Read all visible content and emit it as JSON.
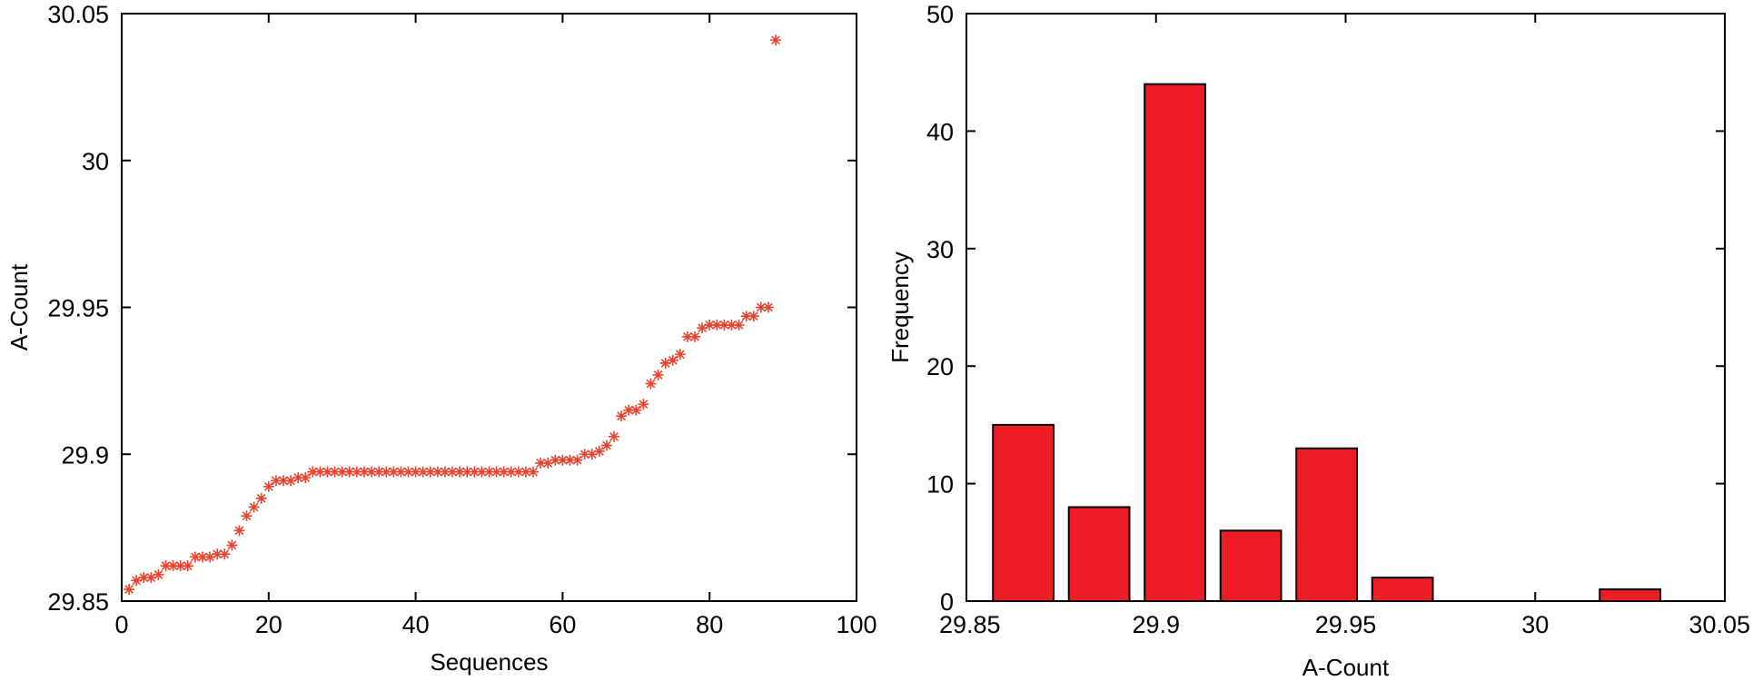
{
  "chart_data": [
    {
      "type": "scatter",
      "marker": "asterisk",
      "color": "#e8432e",
      "xlabel": "Sequences",
      "ylabel": "A-Count",
      "xlim": [
        0,
        100
      ],
      "ylim": [
        29.85,
        30.05
      ],
      "xticks": [
        0,
        20,
        40,
        60,
        80,
        100
      ],
      "xtick_labels": [
        "0",
        "20",
        "40",
        "60",
        "80",
        "100"
      ],
      "yticks": [
        29.85,
        29.9,
        29.95,
        30,
        30.05
      ],
      "ytick_labels": [
        "29.85",
        "29.9",
        "29.95",
        "30",
        "30.05"
      ],
      "grid": false,
      "x": [
        1,
        2,
        3,
        4,
        5,
        6,
        7,
        8,
        9,
        10,
        11,
        12,
        13,
        14,
        15,
        16,
        17,
        18,
        19,
        20,
        21,
        22,
        23,
        24,
        25,
        26,
        27,
        28,
        29,
        30,
        31,
        32,
        33,
        34,
        35,
        36,
        37,
        38,
        39,
        40,
        41,
        42,
        43,
        44,
        45,
        46,
        47,
        48,
        49,
        50,
        51,
        52,
        53,
        54,
        55,
        56,
        57,
        58,
        59,
        60,
        61,
        62,
        63,
        64,
        65,
        66,
        67,
        68,
        69,
        70,
        71,
        72,
        73,
        74,
        75,
        76,
        77,
        78,
        79,
        80,
        81,
        82,
        83,
        84,
        85,
        86,
        87,
        88,
        89
      ],
      "y": [
        29.854,
        29.857,
        29.858,
        29.858,
        29.859,
        29.862,
        29.862,
        29.862,
        29.862,
        29.865,
        29.865,
        29.865,
        29.866,
        29.866,
        29.869,
        29.874,
        29.879,
        29.882,
        29.885,
        29.889,
        29.891,
        29.891,
        29.891,
        29.892,
        29.892,
        29.894,
        29.894,
        29.894,
        29.894,
        29.894,
        29.894,
        29.894,
        29.894,
        29.894,
        29.894,
        29.894,
        29.894,
        29.894,
        29.894,
        29.894,
        29.894,
        29.894,
        29.894,
        29.894,
        29.894,
        29.894,
        29.894,
        29.894,
        29.894,
        29.894,
        29.894,
        29.894,
        29.894,
        29.894,
        29.894,
        29.894,
        29.897,
        29.897,
        29.898,
        29.898,
        29.898,
        29.898,
        29.9,
        29.9,
        29.901,
        29.903,
        29.906,
        29.913,
        29.915,
        29.915,
        29.917,
        29.924,
        29.927,
        29.931,
        29.932,
        29.934,
        29.94,
        29.94,
        29.943,
        29.944,
        29.944,
        29.944,
        29.944,
        29.944,
        29.947,
        29.947,
        29.95,
        29.95,
        30.041
      ]
    },
    {
      "type": "bar",
      "color": "#ee1c25",
      "edge_color": "#000000",
      "xlabel": "A-Count",
      "ylabel": "Frequency",
      "xlim": [
        29.85,
        30.05
      ],
      "ylim": [
        0,
        50
      ],
      "xticks": [
        29.85,
        29.9,
        29.95,
        30,
        30.05
      ],
      "xtick_labels": [
        "29.85",
        "29.9",
        "29.95",
        "30",
        "30.05"
      ],
      "yticks": [
        0,
        10,
        20,
        30,
        40,
        50
      ],
      "ytick_labels": [
        "0",
        "10",
        "20",
        "30",
        "40",
        "50"
      ],
      "grid": false,
      "bin_centers": [
        29.865,
        29.885,
        29.905,
        29.925,
        29.945,
        29.965,
        29.985,
        30.005,
        30.025
      ],
      "bin_width": 0.02,
      "values": [
        15,
        8,
        44,
        6,
        13,
        2,
        0,
        0,
        1
      ]
    }
  ]
}
